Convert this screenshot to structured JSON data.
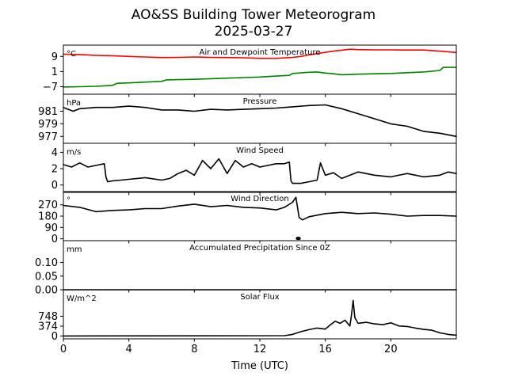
{
  "figure": {
    "title": "AO&SS Building Tower Meteorogram",
    "subtitle": "2025-03-27",
    "xlabel": "Time (UTC)",
    "xlim": [
      0,
      24
    ],
    "xticks": [
      0,
      4,
      8,
      12,
      16,
      20
    ],
    "xtick_labels": [
      "0",
      "4",
      "8",
      "12",
      "16",
      "20"
    ]
  },
  "chart_data": [
    {
      "type": "line",
      "title": "Air and Dewpoint Temperature",
      "unit": "°C",
      "ylim": [
        -11,
        15
      ],
      "yticks": [
        9,
        1,
        -7
      ],
      "ytick_labels": [
        "9",
        "1",
        "−7"
      ],
      "series": [
        {
          "color": "#ff0000",
          "x": [
            0,
            1,
            2,
            3,
            4,
            5,
            6,
            7,
            8,
            9,
            10,
            11,
            12,
            13,
            14,
            14.5,
            15,
            16,
            16.5,
            17,
            17.5,
            18,
            19,
            20,
            21,
            22,
            23,
            24
          ],
          "y": [
            10.2,
            10.0,
            9.6,
            9.4,
            9.0,
            8.7,
            8.4,
            8.5,
            8.7,
            8.5,
            8.4,
            8.3,
            8.0,
            8.0,
            8.5,
            9.0,
            9.8,
            11.2,
            11.8,
            12.3,
            12.8,
            12.6,
            12.5,
            12.5,
            12.4,
            12.4,
            11.8,
            11.1
          ]
        },
        {
          "color": "#008000",
          "x": [
            0,
            1,
            2,
            3,
            3.3,
            4,
            5,
            6,
            6.3,
            7,
            8,
            9,
            10,
            11,
            12,
            13,
            13.8,
            14,
            15,
            15.5,
            16,
            16.5,
            17,
            18,
            19,
            20,
            21,
            22,
            23,
            23.2,
            24
          ],
          "y": [
            -7.2,
            -7.0,
            -6.8,
            -6.3,
            -5.2,
            -5.0,
            -4.6,
            -4.2,
            -3.4,
            -3.3,
            -3.1,
            -2.8,
            -2.5,
            -2.2,
            -1.9,
            -1.4,
            -1.0,
            0.0,
            0.6,
            0.8,
            0.2,
            -0.2,
            -0.7,
            -0.4,
            -0.2,
            0.0,
            0.4,
            0.8,
            1.6,
            3.2,
            3.2
          ]
        }
      ]
    },
    {
      "type": "line",
      "title": "Pressure",
      "unit": "hPa",
      "ylim": [
        975.9,
        983.7
      ],
      "yticks": [
        981,
        979,
        977
      ],
      "ytick_labels": [
        "981",
        "979",
        "977"
      ],
      "series": [
        {
          "color": "#000000",
          "x": [
            0,
            0.6,
            1,
            2,
            3,
            4,
            5,
            6,
            7,
            8,
            9,
            10,
            11,
            12,
            13,
            14,
            15,
            16,
            17,
            18,
            19,
            20,
            21,
            22,
            23,
            24
          ],
          "y": [
            981.6,
            981.0,
            981.4,
            981.6,
            981.6,
            981.8,
            981.6,
            981.2,
            981.2,
            981.0,
            981.3,
            981.2,
            981.3,
            981.4,
            981.5,
            981.7,
            981.9,
            982.0,
            981.4,
            980.6,
            979.8,
            979.0,
            978.6,
            977.8,
            977.5,
            977.0
          ]
        }
      ]
    },
    {
      "type": "line",
      "title": "Wind Speed",
      "unit": "m/s",
      "ylim": [
        -0.9,
        5.1
      ],
      "yticks": [
        4,
        2,
        0
      ],
      "ytick_labels": [
        "4",
        "2",
        "0"
      ],
      "series": [
        {
          "color": "#000000",
          "x": [
            0,
            0.5,
            1,
            1.5,
            2,
            2.5,
            2.6,
            2.7,
            3,
            4,
            5,
            6,
            6.5,
            7,
            7.5,
            8,
            8.5,
            9,
            9.5,
            10,
            10.5,
            11,
            11.5,
            12,
            12.5,
            13,
            13.5,
            13.8,
            13.9,
            14,
            14.2,
            14.5,
            15,
            15.5,
            15.7,
            16,
            16.5,
            17,
            18,
            19,
            20,
            21,
            22,
            23,
            23.5,
            24
          ],
          "y": [
            2.5,
            2.2,
            2.7,
            2.2,
            2.4,
            2.6,
            1.0,
            0.4,
            0.5,
            0.7,
            0.9,
            0.6,
            0.8,
            1.4,
            1.8,
            1.2,
            3.0,
            2.0,
            3.2,
            1.4,
            3.0,
            2.2,
            2.6,
            2.2,
            2.4,
            2.6,
            2.6,
            2.8,
            0.5,
            0.2,
            0.2,
            0.2,
            0.4,
            0.6,
            2.7,
            1.2,
            1.5,
            0.8,
            1.6,
            1.2,
            1.0,
            1.4,
            1.0,
            1.2,
            1.6,
            1.4
          ]
        }
      ]
    },
    {
      "type": "line",
      "title": "Wind Direction",
      "unit": "°",
      "ylim": [
        -15,
        375
      ],
      "yticks": [
        270,
        180,
        90,
        0
      ],
      "ytick_labels": [
        "270",
        "180",
        "90",
        "0"
      ],
      "series": [
        {
          "color": "#000000",
          "x": [
            0,
            1,
            2,
            3,
            4,
            5,
            6,
            7,
            8,
            9,
            10,
            11,
            12,
            13,
            13.5,
            14,
            14.2,
            14.4,
            14.6,
            15,
            16,
            17,
            18,
            19,
            20,
            21,
            22,
            23,
            24
          ],
          "y": [
            265,
            250,
            215,
            225,
            230,
            240,
            240,
            260,
            275,
            255,
            265,
            250,
            245,
            230,
            250,
            290,
            330,
            170,
            150,
            175,
            200,
            210,
            200,
            205,
            195,
            180,
            185,
            185,
            180
          ]
        },
        {
          "color": "#000000",
          "x": [
            14.3,
            14.4
          ],
          "y": [
            3,
            3
          ]
        }
      ]
    },
    {
      "type": "line",
      "title": "Accumulated Precipitation Since 0Z",
      "unit": "mm",
      "ylim": [
        0,
        0.18
      ],
      "yticks": [
        0.1,
        0.05,
        0.0
      ],
      "ytick_labels": [
        "0.10",
        "0.05",
        "0.00"
      ],
      "series": [
        {
          "color": "#000000",
          "x": [
            0,
            24
          ],
          "y": [
            0,
            0
          ]
        }
      ]
    },
    {
      "type": "line",
      "title": "Solar Flux",
      "unit": "W/m^2",
      "ylim": [
        -110,
        1760
      ],
      "yticks": [
        748,
        374,
        0
      ],
      "ytick_labels": [
        "748",
        "374",
        "0"
      ],
      "series": [
        {
          "color": "#000000",
          "x": [
            0,
            13.5,
            14,
            14.5,
            15,
            15.5,
            16,
            16.3,
            16.6,
            16.9,
            17.2,
            17.5,
            17.6,
            17.7,
            17.8,
            18.0,
            18.5,
            19,
            19.5,
            20,
            20.5,
            21,
            21.5,
            22,
            22.5,
            23,
            23.5,
            24
          ],
          "y": [
            0,
            10,
            60,
            160,
            240,
            300,
            260,
            420,
            560,
            480,
            600,
            380,
            800,
            1350,
            700,
            480,
            520,
            460,
            430,
            500,
            380,
            360,
            300,
            250,
            220,
            120,
            60,
            30
          ]
        }
      ]
    }
  ]
}
